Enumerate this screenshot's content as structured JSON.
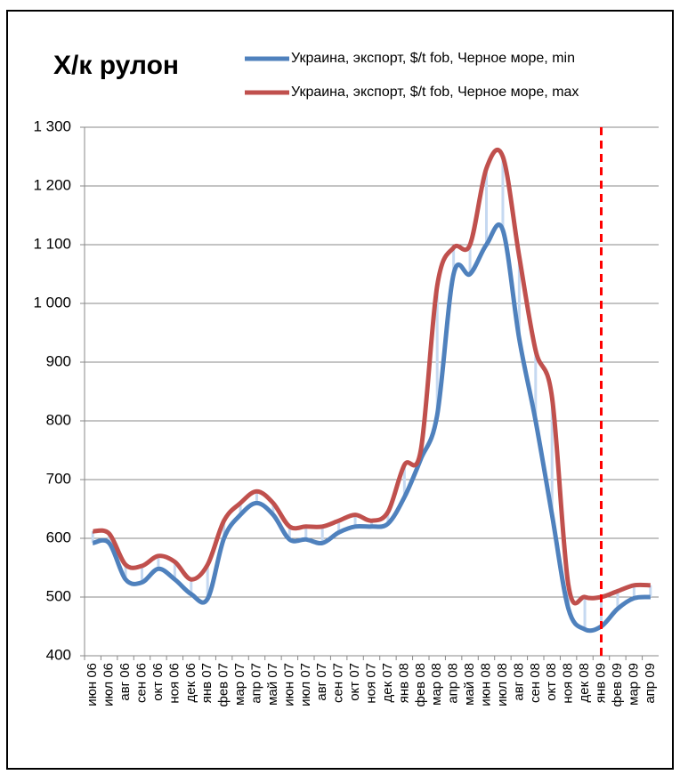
{
  "chart_data": {
    "type": "line",
    "title": "Х/к рулон",
    "categories": [
      "июн 06",
      "июл 06",
      "авг 06",
      "сен 06",
      "окт 06",
      "ноя 06",
      "дек 06",
      "янв 07",
      "фев 07",
      "мар 07",
      "апр 07",
      "май 07",
      "июн 07",
      "июл 07",
      "авг 07",
      "сен 07",
      "окт 07",
      "ноя 07",
      "дек 07",
      "янв 08",
      "фев 08",
      "мар 08",
      "апр 08",
      "май 08",
      "июн 08",
      "июл 08",
      "авг 08",
      "сен 08",
      "окт 08",
      "ноя 08",
      "дек 08",
      "янв 09",
      "фев 09",
      "мар 09",
      "апр 09"
    ],
    "series": [
      {
        "name": "Украина, экспорт, $/t fob, Черное море, min",
        "color": "#4f81bd",
        "values": [
          592,
          592,
          530,
          525,
          548,
          530,
          505,
          497,
          600,
          640,
          660,
          640,
          598,
          598,
          592,
          610,
          620,
          620,
          625,
          670,
          735,
          810,
          1050,
          1050,
          1100,
          1125,
          940,
          800,
          640,
          480,
          445,
          450,
          480,
          498,
          500
        ]
      },
      {
        "name": "Украина, экспорт, $/t fob, Черное море, max",
        "color": "#c0504d",
        "values": [
          612,
          608,
          555,
          553,
          570,
          560,
          530,
          555,
          630,
          660,
          680,
          660,
          620,
          620,
          620,
          630,
          640,
          630,
          645,
          725,
          750,
          1030,
          1095,
          1100,
          1230,
          1250,
          1080,
          920,
          840,
          520,
          500,
          500,
          510,
          520,
          520
        ]
      }
    ],
    "ylim": [
      400,
      1300
    ],
    "yticks": [
      400,
      500,
      600,
      700,
      800,
      900,
      {
        "value": 1000,
        "label": "1 000"
      },
      {
        "value": 1100,
        "label": "1 100"
      },
      {
        "value": 1200,
        "label": "1 200"
      },
      {
        "value": 1300,
        "label": "1 300"
      }
    ],
    "grid": true,
    "legend": "top-right",
    "vline": {
      "x": "янв 09",
      "color": "#ff0000"
    }
  }
}
